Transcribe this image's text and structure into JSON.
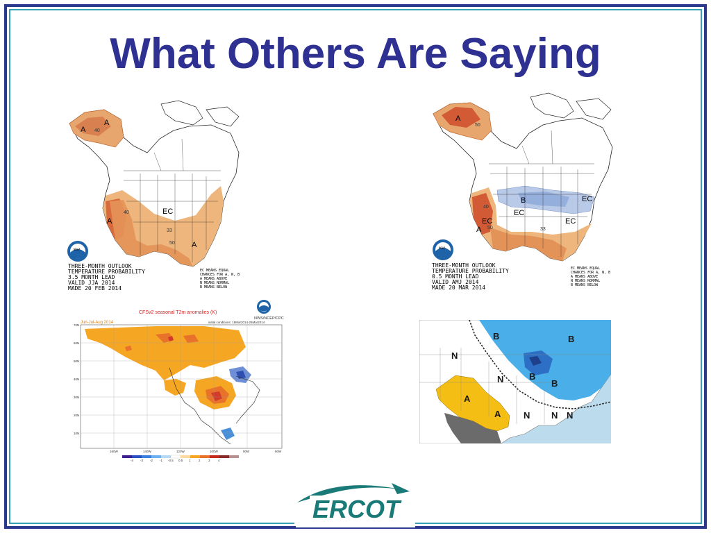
{
  "slide": {
    "title": "What Others Are Saying",
    "colors": {
      "title": "#2e3192",
      "frame": "#2b3a8c",
      "frame_inner": "#3aa0b8",
      "ercot_teal": "#1a7a78"
    }
  },
  "map_jja": {
    "caption_lines": [
      "THREE-MONTH OUTLOOK",
      "TEMPERATURE PROBABILITY",
      "3.5 MONTH LEAD",
      "VALID JJA 2014",
      "MADE 20 FEB 2014"
    ],
    "legend_lines": [
      "EC MEANS EQUAL",
      "CHANCES FOR A, N, B",
      "A MEANS ABOVE",
      "N MEANS NORMAL",
      "B MEANS BELOW"
    ],
    "labels": {
      "a1": "A",
      "a2": "A",
      "a3": "A",
      "a4": "A",
      "ec": "EC",
      "n40a": "40",
      "n40b": "40",
      "n33": "33",
      "n50": "50"
    },
    "logo_text": "NOAA"
  },
  "map_amj": {
    "caption_lines": [
      "THREE-MONTH OUTLOOK",
      "TEMPERATURE PROBABILITY",
      "0.5 MONTH LEAD",
      "VALID AMJ 2014",
      "MADE 20 MAR 2014"
    ],
    "legend_lines": [
      "EC MEANS EQUAL",
      "CHANCES FOR A, N, B",
      "A MEANS ABOVE",
      "N MEANS NORMAL",
      "B MEANS BELOW"
    ],
    "labels": {
      "a1": "A",
      "a2": "A",
      "b": "B",
      "ec1": "EC",
      "ec2": "EC",
      "ec3": "EC",
      "ec4": "EC",
      "n50a": "50",
      "n50b": "50",
      "n40": "40",
      "n33": "33"
    },
    "logo_text": "NOAA"
  },
  "cfs_map": {
    "title": "CFSv2 seasonal T2m anomalies (K)",
    "period": "Jun-Jul-Aug 2014",
    "init": "initial conditions: 16Mar2014-25Mar2014",
    "agency": "NWS/NCEP/CPC",
    "y_ticks": [
      "70N",
      "60N",
      "50N",
      "40N",
      "30N",
      "20N",
      "10N"
    ],
    "x_ticks": [
      "160W",
      "140W",
      "120W",
      "100W",
      "80W",
      "60W"
    ],
    "colorbar_ticks": [
      "-4",
      "-3",
      "-2",
      "-1",
      "-0.5",
      "0.5",
      "1",
      "2",
      "3",
      "4"
    ]
  },
  "forecast_map": {
    "labels": {
      "b1": "B",
      "b2": "B",
      "b3": "B",
      "b4": "B",
      "n1": "N",
      "n2": "N",
      "n3": "N",
      "n4": "N",
      "n5": "N",
      "a1": "A",
      "a2": "A"
    }
  },
  "logo": {
    "text": "ERCOT"
  }
}
